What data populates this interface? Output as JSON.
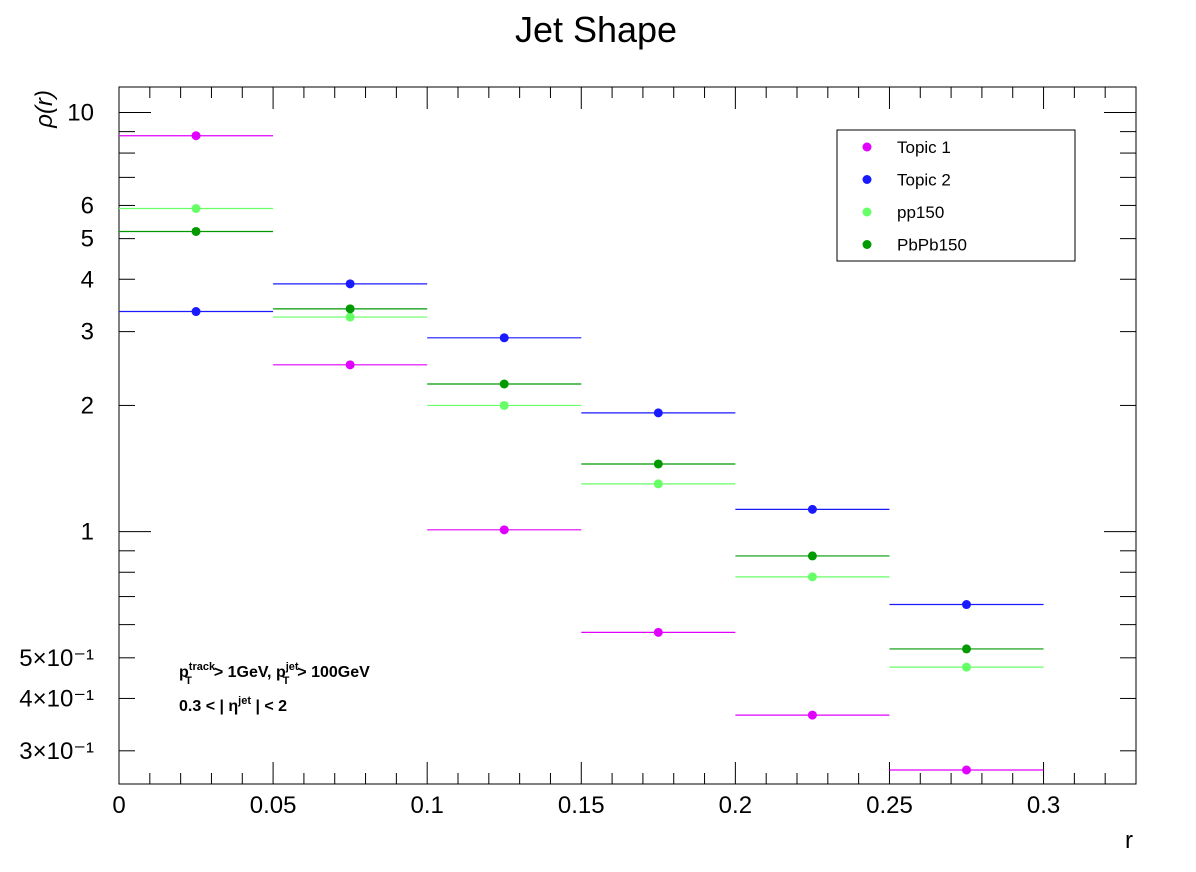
{
  "chart_data": {
    "type": "scatter",
    "title": "Jet Shape",
    "xlabel": "r",
    "ylabel": "ρ(r)",
    "yscale": "log",
    "xlim": [
      0,
      0.33
    ],
    "ylim": [
      0.25,
      11.5
    ],
    "x": [
      0.025,
      0.075,
      0.125,
      0.175,
      0.225,
      0.275
    ],
    "x_bin_edges": [
      0,
      0.05,
      0.1,
      0.15,
      0.2,
      0.25,
      0.3
    ],
    "series": [
      {
        "name": "Topic 1",
        "color": "#e100ff",
        "values": [
          8.8,
          2.5,
          1.01,
          0.575,
          0.365,
          0.27
        ]
      },
      {
        "name": "Topic 2",
        "color": "#1a1aff",
        "values": [
          3.35,
          3.9,
          2.9,
          1.92,
          1.13,
          0.67
        ]
      },
      {
        "name": "pp150",
        "color": "#66ff66",
        "values": [
          5.9,
          3.25,
          2.0,
          1.3,
          0.78,
          0.475
        ]
      },
      {
        "name": "PbPb150",
        "color": "#009900",
        "values": [
          5.2,
          3.4,
          2.25,
          1.45,
          0.875,
          0.525
        ]
      }
    ],
    "x_ticks": [
      "0",
      "0.05",
      "0.1",
      "0.15",
      "0.2",
      "0.25",
      "0.3"
    ],
    "y_ticks": [
      {
        "value": 10,
        "label": "10"
      },
      {
        "value": 6,
        "label": "6"
      },
      {
        "value": 5,
        "label": "5"
      },
      {
        "value": 4,
        "label": "4"
      },
      {
        "value": 3,
        "label": "3"
      },
      {
        "value": 2,
        "label": "2"
      },
      {
        "value": 1,
        "label": "1"
      },
      {
        "value": 0.5,
        "label": "5×10⁻¹"
      },
      {
        "value": 0.4,
        "label": "4×10⁻¹"
      },
      {
        "value": 0.3,
        "label": "3×10⁻¹"
      }
    ],
    "legend_position": "top-right",
    "annotations": [
      "p_T^track > 1GeV, p_T^jet > 100GeV",
      "0.3 < | η^jet | < 2"
    ],
    "grid": false
  }
}
